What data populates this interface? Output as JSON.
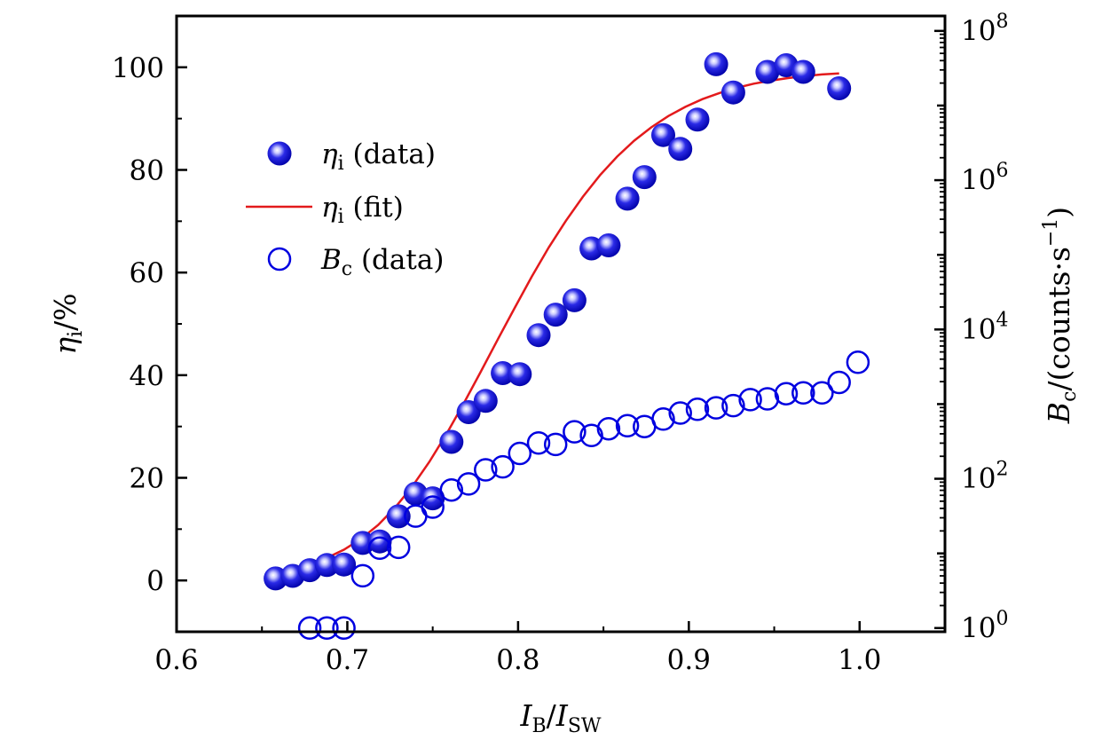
{
  "chart_data": {
    "type": "scatter",
    "title": "",
    "xlabel": {
      "main": "I",
      "sub": "B",
      "sep": "/",
      "main2": "I",
      "sub2": "SW"
    },
    "ylabel_left": {
      "main": "η",
      "sub": "i",
      "suffix": "/%"
    },
    "ylabel_right": {
      "main": "B",
      "sub": "c",
      "suffix": "/(counts·s",
      "sup": "−1",
      "close": ")"
    },
    "xlim": [
      0.6,
      1.05
    ],
    "ylim_left": [
      -10,
      110
    ],
    "ylim_right_log10": [
      -0.05,
      8.2
    ],
    "x_ticks": [
      0.6,
      0.7,
      0.8,
      0.9,
      1.0
    ],
    "x_tick_labels": [
      "0.6",
      "0.7",
      "0.8",
      "0.9",
      "1.0"
    ],
    "y_left_ticks": [
      0,
      20,
      40,
      60,
      80,
      100
    ],
    "y_left_tick_labels": [
      "0",
      "20",
      "40",
      "60",
      "80",
      "100"
    ],
    "y_right_ticks_log10": [
      0,
      2,
      4,
      6,
      8
    ],
    "y_right_tick_base": "10",
    "y_right_tick_exponents": [
      "0",
      "2",
      "4",
      "6",
      "8"
    ],
    "legend_position": "upper-left",
    "legend": [
      {
        "symbol": "filled-circle",
        "main": "η",
        "sub": "i",
        "rest": " (data)"
      },
      {
        "symbol": "line",
        "main": "η",
        "sub": "i",
        "rest": " (fit)"
      },
      {
        "symbol": "open-circle",
        "main": "B",
        "sub": "c",
        "rest": " (data)"
      }
    ],
    "series": [
      {
        "name": "ηi (data)",
        "axis": "left",
        "marker": "filled-circle",
        "x": [
          0.658,
          0.668,
          0.678,
          0.688,
          0.698,
          0.709,
          0.719,
          0.73,
          0.74,
          0.75,
          0.761,
          0.771,
          0.781,
          0.791,
          0.801,
          0.812,
          0.822,
          0.833,
          0.843,
          0.853,
          0.864,
          0.874,
          0.885,
          0.895,
          0.905,
          0.916,
          0.926,
          0.946,
          0.957,
          0.967,
          0.988
        ],
        "y": [
          0.4,
          0.9,
          2.0,
          3.0,
          3.1,
          7.3,
          7.6,
          12.5,
          16.9,
          16.0,
          27.0,
          32.8,
          35.0,
          40.4,
          40.2,
          47.8,
          51.8,
          54.6,
          64.7,
          65.3,
          74.4,
          78.6,
          86.8,
          84.1,
          89.8,
          100.6,
          95.1,
          99.1,
          100.4,
          99.1,
          95.9
        ]
      },
      {
        "name": "ηi (fit)",
        "axis": "left",
        "marker": "line",
        "color": "#e31a1c",
        "x": [
          0.658,
          0.668,
          0.678,
          0.688,
          0.698,
          0.708,
          0.718,
          0.728,
          0.738,
          0.748,
          0.758,
          0.768,
          0.778,
          0.788,
          0.798,
          0.808,
          0.818,
          0.828,
          0.838,
          0.848,
          0.858,
          0.868,
          0.878,
          0.888,
          0.898,
          0.908,
          0.918,
          0.928,
          0.938,
          0.948,
          0.958,
          0.968,
          0.978,
          0.988
        ],
        "y": [
          1.6,
          2.3,
          3.2,
          4.4,
          6.0,
          8.1,
          10.8,
          14.2,
          18.3,
          23.1,
          28.5,
          34.4,
          40.6,
          46.9,
          53.1,
          59.2,
          64.9,
          70.1,
          74.8,
          79.0,
          82.6,
          85.7,
          88.3,
          90.5,
          92.3,
          93.8,
          95.0,
          96.0,
          96.8,
          97.4,
          97.9,
          98.3,
          98.6,
          98.8
        ]
      },
      {
        "name": "Bc (data)",
        "axis": "right",
        "marker": "open-circle",
        "x": [
          0.678,
          0.688,
          0.698,
          0.709,
          0.719,
          0.73,
          0.74,
          0.75,
          0.761,
          0.771,
          0.781,
          0.791,
          0.801,
          0.812,
          0.822,
          0.833,
          0.843,
          0.853,
          0.864,
          0.874,
          0.885,
          0.895,
          0.905,
          0.916,
          0.926,
          0.936,
          0.946,
          0.957,
          0.967,
          0.978,
          0.988,
          0.999
        ],
        "y_log10": [
          0.0,
          0.0,
          0.0,
          0.7,
          1.07,
          1.08,
          1.5,
          1.62,
          1.85,
          1.93,
          2.12,
          2.16,
          2.34,
          2.48,
          2.46,
          2.63,
          2.58,
          2.67,
          2.71,
          2.7,
          2.8,
          2.88,
          2.93,
          2.95,
          2.98,
          3.06,
          3.07,
          3.14,
          3.15,
          3.15,
          3.29,
          3.56
        ]
      }
    ]
  }
}
